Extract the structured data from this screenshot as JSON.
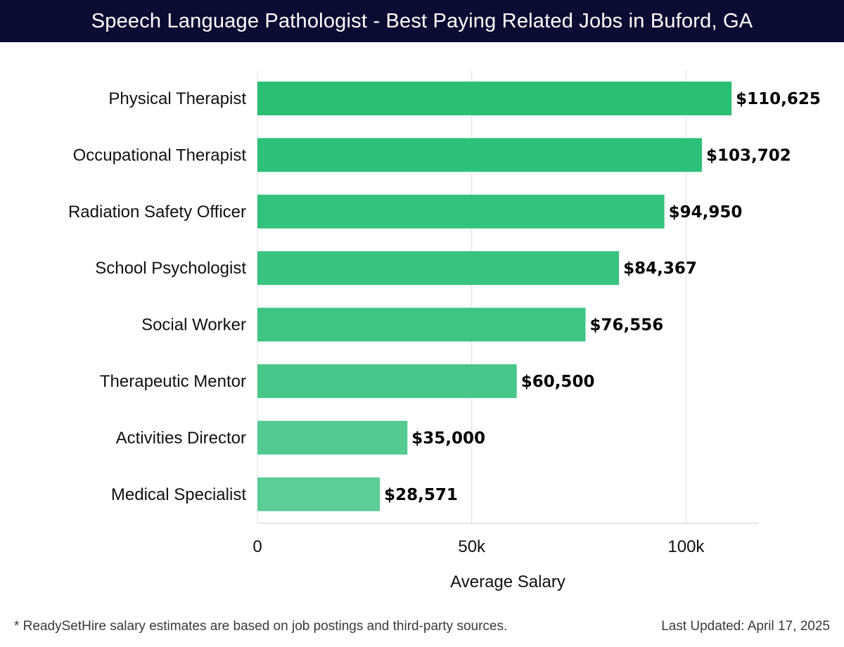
{
  "header": {
    "title": "Speech Language Pathologist - Best Paying Related Jobs in Buford, GA"
  },
  "footer": {
    "note": "* ReadySetHire salary estimates are based on job postings and third-party sources.",
    "updated": "Last Updated: April 17, 2025"
  },
  "chart_data": {
    "type": "bar",
    "orientation": "horizontal",
    "title": "Speech Language Pathologist - Best Paying Related Jobs in Buford, GA",
    "xlabel": "Average Salary",
    "ylabel": "",
    "xlim": [
      0,
      117000
    ],
    "xticks": [
      0,
      50000,
      100000
    ],
    "xtick_labels": [
      "0",
      "50k",
      "100k"
    ],
    "grid": true,
    "categories": [
      "Physical Therapist",
      "Occupational Therapist",
      "Radiation Safety Officer",
      "School Psychologist",
      "Social Worker",
      "Therapeutic Mentor",
      "Activities Director",
      "Medical Specialist"
    ],
    "values": [
      110625,
      103702,
      94950,
      84367,
      76556,
      60500,
      35000,
      28571
    ],
    "value_labels": [
      "$110,625",
      "$103,702",
      "$94,950",
      "$84,367",
      "$76,556",
      "$60,500",
      "$35,000",
      "$28,571"
    ],
    "bar_colors": [
      "#2abf74",
      "#2cc078",
      "#33c27c",
      "#38c380",
      "#3ec584",
      "#48c78a",
      "#52ca91",
      "#5bcd97"
    ],
    "grid_color": "#dddddd",
    "axis_color": "#cccccc"
  }
}
